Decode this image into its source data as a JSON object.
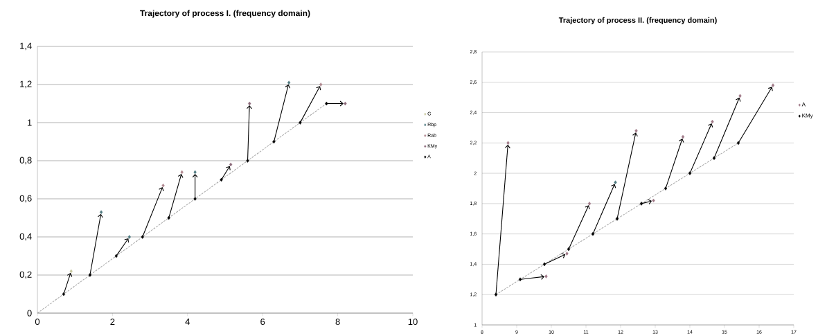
{
  "chart_data": [
    {
      "type": "scatter",
      "title": "Trajectory of process I. (frequency domain)",
      "xlim": [
        0,
        10
      ],
      "xticks": [
        0,
        2,
        4,
        6,
        8,
        10
      ],
      "ylim": [
        0,
        1.4
      ],
      "yticks": [
        0,
        {
          "value": 0.2,
          "label": "0,2"
        },
        {
          "value": 0.4,
          "label": "0,4"
        },
        {
          "value": 0.6,
          "label": "0,6"
        },
        {
          "value": 0.8,
          "label": "0,8"
        },
        1,
        {
          "value": 1.2,
          "label": "1,2"
        },
        {
          "value": 1.4,
          "label": "1,4"
        }
      ],
      "grid": "y",
      "legend": "right",
      "marker": "diamond",
      "series": [
        {
          "type": "line",
          "line_style": "dashed",
          "marker": "none",
          "color": "#a6a6a6",
          "x": [
            0,
            7.7
          ],
          "values": [
            0,
            1.1
          ]
        },
        {
          "name": "G",
          "color": "#c8c8a0",
          "x": [
            0.9
          ],
          "values": [
            0.22
          ]
        },
        {
          "name": "Rbp",
          "color": "#4f7a80",
          "x": [
            1.7,
            2.45,
            4.2,
            6.7
          ],
          "values": [
            0.53,
            0.4,
            0.74,
            1.21
          ]
        },
        {
          "name": "Rab",
          "color": "#b08890",
          "x": [
            3.35,
            3.85,
            7.55
          ],
          "values": [
            0.67,
            0.74,
            1.2
          ]
        },
        {
          "name": "KMy",
          "color": "#8a6878",
          "x": [
            5.15,
            5.65,
            8.2
          ],
          "values": [
            0.78,
            1.1,
            1.1
          ]
        },
        {
          "name": "A",
          "color": "#000000",
          "x": [
            0.7,
            1.4,
            2.1,
            2.8,
            3.5,
            4.2,
            4.9,
            5.6,
            6.3,
            7.0,
            7.7
          ],
          "values": [
            0.1,
            0.2,
            0.3,
            0.4,
            0.5,
            0.6,
            0.7,
            0.8,
            0.9,
            1.0,
            1.1
          ]
        }
      ]
    },
    {
      "type": "scatter",
      "title": "Trajectory of process II. (frequency domain)",
      "xlim": [
        8,
        17
      ],
      "xticks": [
        8,
        9,
        10,
        11,
        12,
        13,
        14,
        15,
        16,
        17
      ],
      "ylim": [
        1,
        2.8
      ],
      "yticks": [
        1,
        {
          "value": 1.2,
          "label": "1,2"
        },
        {
          "value": 1.4,
          "label": "1,4"
        },
        {
          "value": 1.6,
          "label": "1,6"
        },
        {
          "value": 1.8,
          "label": "1,8"
        },
        2,
        {
          "value": 2.2,
          "label": "2,2"
        },
        {
          "value": 2.4,
          "label": "2,4"
        },
        {
          "value": 2.6,
          "label": "2,6"
        },
        {
          "value": 2.8,
          "label": "2,8"
        }
      ],
      "grid": "y",
      "legend": "right",
      "marker": "diamond",
      "series": [
        {
          "type": "line",
          "line_style": "dashed",
          "marker": "none",
          "color": "#a6a6a6",
          "x": [
            8.4,
            15.4
          ],
          "values": [
            1.2,
            2.2
          ]
        },
        {
          "name": "A",
          "color": "#a07a88",
          "x": [
            8.75,
            9.85,
            10.45,
            11.1,
            11.85,
            12.45,
            12.95,
            13.8,
            14.65,
            15.45,
            16.4
          ],
          "values": [
            2.2,
            1.32,
            1.47,
            1.8,
            1.94,
            2.28,
            1.82,
            2.24,
            2.34,
            2.51,
            2.58
          ],
          "colors": [
            "#a07a88",
            "#a07a88",
            "#a07a88",
            "#a07a88",
            "#4f7a80",
            "#a07a88",
            "#a07a88",
            "#a07a88",
            "#a07a88",
            "#a07a88",
            "#a07a88"
          ]
        },
        {
          "name": "KMy",
          "color": "#000000",
          "x": [
            8.4,
            9.1,
            9.8,
            10.5,
            11.2,
            11.9,
            12.6,
            13.3,
            14.0,
            14.7,
            15.4
          ],
          "values": [
            1.2,
            1.3,
            1.4,
            1.5,
            1.6,
            1.7,
            1.8,
            1.9,
            2.0,
            2.1,
            2.2
          ]
        }
      ]
    }
  ]
}
